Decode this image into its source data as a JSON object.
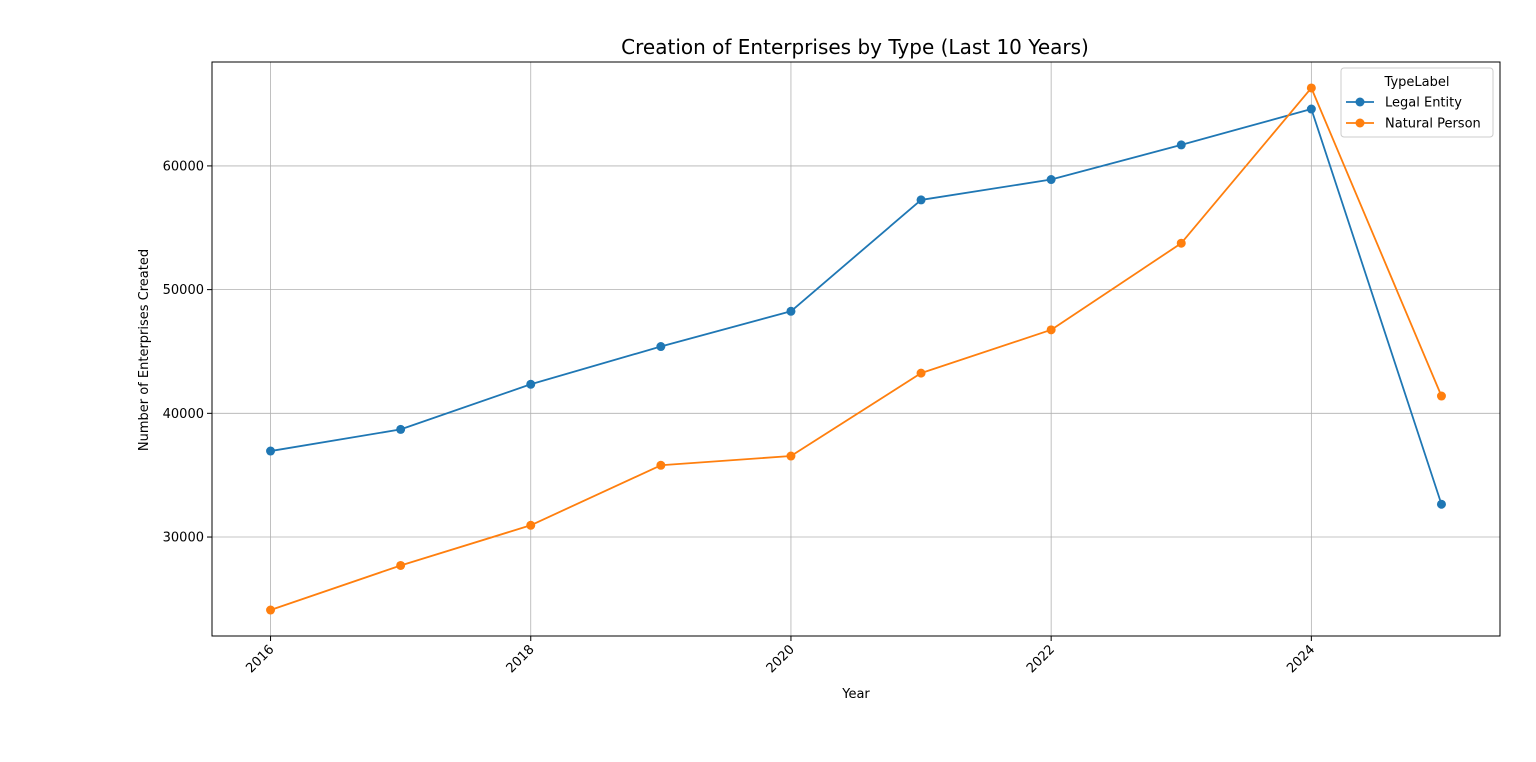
{
  "chart_data": {
    "type": "line",
    "title": "Creation of Enterprises by Type (Last 10 Years)",
    "xlabel": "Year",
    "ylabel": "Number of Enterprises Created",
    "x": [
      2016,
      2017,
      2018,
      2019,
      2020,
      2021,
      2022,
      2023,
      2024,
      2025
    ],
    "xlim": [
      2015.55,
      2025.45
    ],
    "ylim": [
      22000,
      68400
    ],
    "xticks": [
      2016,
      2018,
      2020,
      2022,
      2024
    ],
    "xtick_labels": [
      "2016",
      "2018",
      "2020",
      "2022",
      "2024"
    ],
    "yticks": [
      30000,
      40000,
      50000,
      60000
    ],
    "ytick_labels": [
      "30000",
      "40000",
      "50000",
      "60000"
    ],
    "grid": true,
    "legend": {
      "title": "TypeLabel",
      "placement": "top-right"
    },
    "series": [
      {
        "name": "Legal Entity",
        "color": "#1f77b4",
        "values": [
          36950,
          38700,
          42350,
          45400,
          48250,
          57250,
          58900,
          61700,
          64600,
          32650
        ]
      },
      {
        "name": "Natural Person",
        "color": "#ff7f0e",
        "values": [
          24100,
          27700,
          30950,
          35800,
          36550,
          43250,
          46750,
          53750,
          66300,
          41400
        ]
      }
    ]
  }
}
